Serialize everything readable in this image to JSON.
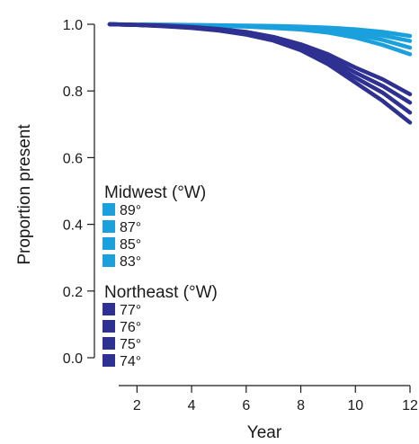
{
  "chart_data": {
    "type": "line",
    "xlabel": "Year",
    "ylabel": "Proportion present",
    "xlim": [
      1,
      12
    ],
    "ylim": [
      0,
      1
    ],
    "xticks": [
      2,
      4,
      6,
      8,
      10,
      12
    ],
    "yticks": [
      0.0,
      0.2,
      0.4,
      0.6,
      0.8,
      1.0
    ],
    "ytick_labels": [
      "0.0",
      "0.2",
      "0.4",
      "0.6",
      "0.8",
      "1.0"
    ],
    "grid": false,
    "legend_position": "left",
    "x": [
      1,
      2,
      3,
      4,
      5,
      6,
      7,
      8,
      9,
      10,
      11,
      12
    ],
    "groups": [
      {
        "title": "Midwest (°W)",
        "color": "#1aa0dc",
        "series": [
          {
            "name": "89°",
            "values": [
              1.0,
              0.999,
              0.999,
              0.998,
              0.997,
              0.996,
              0.995,
              0.993,
              0.99,
              0.985,
              0.977,
              0.965
            ]
          },
          {
            "name": "87°",
            "values": [
              1.0,
              0.999,
              0.998,
              0.997,
              0.996,
              0.995,
              0.993,
              0.99,
              0.986,
              0.978,
              0.966,
              0.95
            ]
          },
          {
            "name": "85°",
            "values": [
              1.0,
              0.999,
              0.998,
              0.997,
              0.996,
              0.994,
              0.991,
              0.987,
              0.981,
              0.97,
              0.953,
              0.93
            ]
          },
          {
            "name": "83°",
            "values": [
              1.0,
              0.999,
              0.998,
              0.996,
              0.995,
              0.993,
              0.989,
              0.984,
              0.975,
              0.96,
              0.938,
              0.91
            ]
          }
        ]
      },
      {
        "title": "Northeast (°W)",
        "color": "#2e3192",
        "series": [
          {
            "name": "77°",
            "values": [
              1.0,
              0.998,
              0.996,
              0.992,
              0.986,
              0.977,
              0.962,
              0.94,
              0.91,
              0.87,
              0.835,
              0.79
            ]
          },
          {
            "name": "76°",
            "values": [
              1.0,
              0.998,
              0.995,
              0.991,
              0.984,
              0.974,
              0.958,
              0.934,
              0.9,
              0.855,
              0.815,
              0.765
            ]
          },
          {
            "name": "75°",
            "values": [
              1.0,
              0.998,
              0.995,
              0.99,
              0.983,
              0.972,
              0.955,
              0.928,
              0.89,
              0.84,
              0.795,
              0.735
            ]
          },
          {
            "name": "74°",
            "values": [
              1.0,
              0.998,
              0.994,
              0.989,
              0.981,
              0.969,
              0.951,
              0.922,
              0.88,
              0.825,
              0.77,
              0.705
            ]
          }
        ]
      }
    ]
  }
}
